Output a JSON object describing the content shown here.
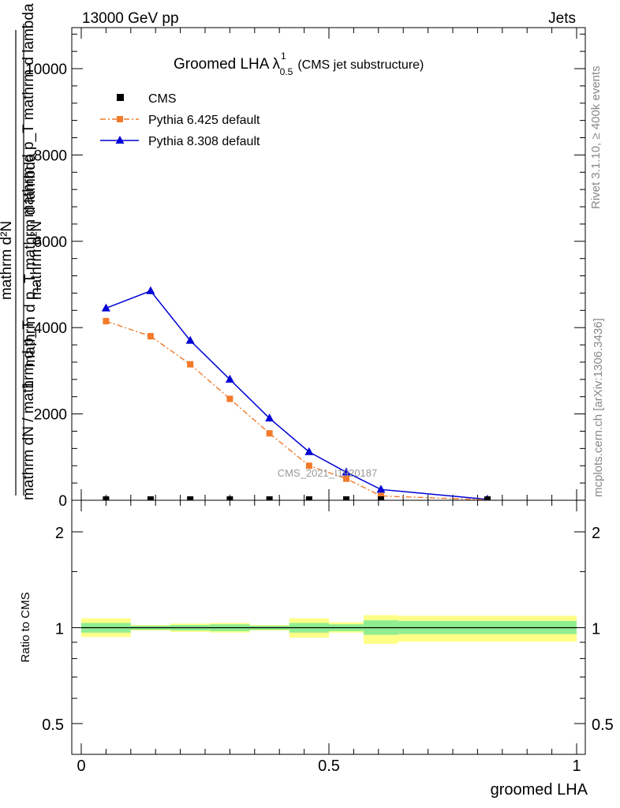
{
  "header": {
    "left": "13000 GeV pp",
    "right": "Jets"
  },
  "title": {
    "main": "Groomed LHA",
    "lambda": "λ",
    "sup": "1",
    "sub": "0.5",
    "suffix": "(CMS jet substructure)"
  },
  "watermark": "CMS_2021_I1920187",
  "side_labels": {
    "rivet": "Rivet 3.1.10, ≥ 400k events",
    "mcplots": "mcplots.cern.ch [arXiv:1306.3436]"
  },
  "colors": {
    "cms": "#000000",
    "py6": "#f27a2a",
    "py8": "#0000d6",
    "band_inner": "#90ee90",
    "band_outer": "#ffff88"
  },
  "chart_data": [
    {
      "type": "line",
      "panel": "main",
      "xlim": [
        -0.02,
        1.02
      ],
      "ylim": [
        0,
        11000
      ],
      "yticks": [
        {
          "value": 0,
          "label": "0"
        },
        {
          "value": 2000,
          "label": "2000"
        },
        {
          "value": 4000,
          "label": "4000"
        },
        {
          "value": 6000,
          "label": "6000"
        },
        {
          "value": 8000,
          "label": "8000"
        },
        {
          "value": 10000,
          "label": "10000"
        }
      ],
      "ylabel": {
        "numerator": "1",
        "denominator": "mathrm dN / mathrm d p_T mathrm d p_T mathrm dN",
        "line1": "mathrm d²N",
        "line2": "mathrm d p_T mathrm d lambda",
        "frac_num": "1",
        "frac_den": "mathrm dN / mathrm d p_T"
      },
      "legend_position": "top-left",
      "series": [
        {
          "name": "CMS",
          "marker": "square",
          "x": [
            0.05,
            0.14,
            0.22,
            0.3,
            0.38,
            0.46,
            0.535,
            0.605,
            0.82
          ],
          "y": [
            0,
            0,
            0,
            0,
            0,
            0,
            0,
            0,
            0
          ]
        },
        {
          "name": "Pythia 6.425 default",
          "marker": "square",
          "dash": true,
          "x": [
            0.05,
            0.14,
            0.22,
            0.3,
            0.38,
            0.46,
            0.535,
            0.605,
            0.82
          ],
          "y": [
            4150,
            3800,
            3150,
            2350,
            1550,
            800,
            500,
            100,
            10
          ],
          "err": [
            80,
            80,
            70,
            60,
            40,
            30,
            30,
            20,
            5
          ]
        },
        {
          "name": "Pythia 8.308 default",
          "marker": "triangle",
          "x": [
            0.05,
            0.14,
            0.22,
            0.3,
            0.38,
            0.46,
            0.535,
            0.605,
            0.82
          ],
          "y": [
            4450,
            4850,
            3700,
            2800,
            1900,
            1120,
            650,
            250,
            20
          ]
        }
      ]
    },
    {
      "type": "area",
      "panel": "ratio",
      "xlim": [
        -0.02,
        1.02
      ],
      "ylim": [
        0.35,
        2.3
      ],
      "ylabel": "Ratio to CMS",
      "xlabel": "groomed LHA",
      "xticks": [
        {
          "value": 0,
          "label": "0"
        },
        {
          "value": 0.5,
          "label": "0.5"
        },
        {
          "value": 1,
          "label": "1"
        }
      ],
      "yticks": [
        {
          "value": 0.5,
          "label": "0.5"
        },
        {
          "value": 1,
          "label": "1"
        },
        {
          "value": 2,
          "label": "2"
        }
      ],
      "reference": 1,
      "bins": [
        {
          "x0": 0.0,
          "x1": 0.1,
          "inner": [
            0.965,
            1.035
          ],
          "outer": [
            0.935,
            1.07
          ]
        },
        {
          "x0": 0.1,
          "x1": 0.18,
          "inner": [
            0.985,
            1.015
          ],
          "outer": [
            0.98,
            1.02
          ]
        },
        {
          "x0": 0.18,
          "x1": 0.26,
          "inner": [
            0.98,
            1.02
          ],
          "outer": [
            0.97,
            1.03
          ]
        },
        {
          "x0": 0.26,
          "x1": 0.34,
          "inner": [
            0.975,
            1.025
          ],
          "outer": [
            0.965,
            1.035
          ]
        },
        {
          "x0": 0.34,
          "x1": 0.42,
          "inner": [
            0.985,
            1.015
          ],
          "outer": [
            0.98,
            1.02
          ]
        },
        {
          "x0": 0.42,
          "x1": 0.5,
          "inner": [
            0.965,
            1.035
          ],
          "outer": [
            0.93,
            1.07
          ]
        },
        {
          "x0": 0.5,
          "x1": 0.57,
          "inner": [
            0.975,
            1.025
          ],
          "outer": [
            0.965,
            1.04
          ]
        },
        {
          "x0": 0.57,
          "x1": 0.64,
          "inner": [
            0.95,
            1.055
          ],
          "outer": [
            0.89,
            1.095
          ]
        },
        {
          "x0": 0.64,
          "x1": 1.0,
          "inner": [
            0.955,
            1.05
          ],
          "outer": [
            0.905,
            1.09
          ]
        }
      ]
    }
  ]
}
